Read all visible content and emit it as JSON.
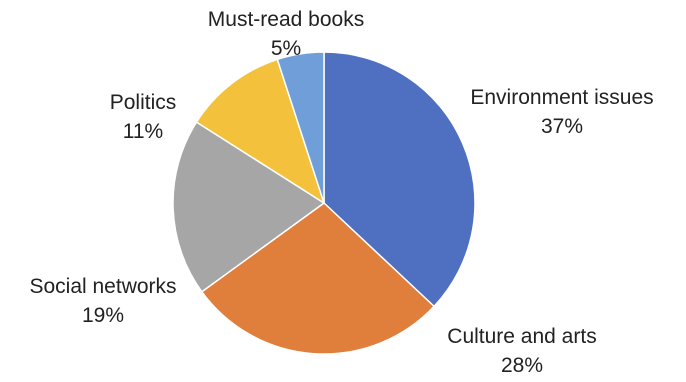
{
  "chart_data": {
    "type": "pie",
    "title": "",
    "slices": [
      {
        "label": "Environment issues",
        "value": 37,
        "value_label": "37%",
        "color": "#4f6fc0"
      },
      {
        "label": "Culture and arts",
        "value": 28,
        "value_label": "28%",
        "color": "#e07e3c"
      },
      {
        "label": "Social networks",
        "value": 19,
        "value_label": "19%",
        "color": "#a6a6a6"
      },
      {
        "label": "Politics",
        "value": 11,
        "value_label": "11%",
        "color": "#f3c13b"
      },
      {
        "label": "Must-read books",
        "value": 5,
        "value_label": "5%",
        "color": "#6f9ed8"
      }
    ]
  }
}
